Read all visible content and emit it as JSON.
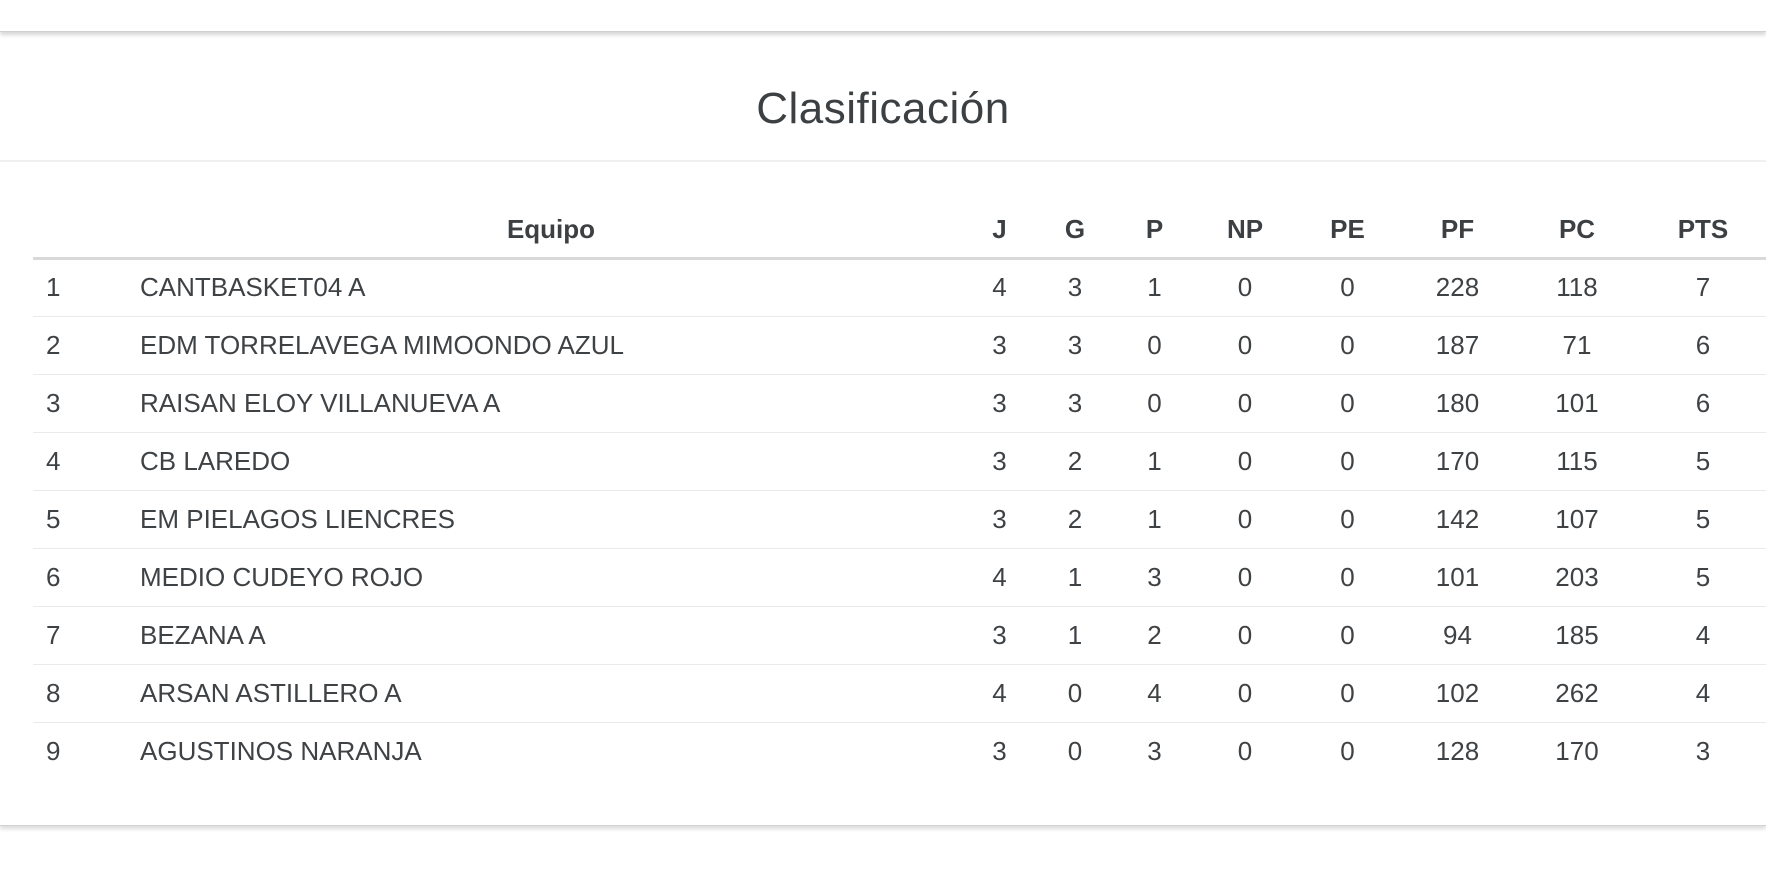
{
  "page": {
    "title": "Clasificación"
  },
  "colors": {
    "text": "#3f4245",
    "title_text": "#3c4043",
    "row_border": "#e9eaea",
    "header_border": "#d9d9d9",
    "title_divider": "#f0f0f0",
    "edge_border": "#d0d0d0",
    "background": "#ffffff"
  },
  "table": {
    "columns": [
      {
        "key": "pos",
        "label": ""
      },
      {
        "key": "team",
        "label": "Equipo"
      },
      {
        "key": "j",
        "label": "J"
      },
      {
        "key": "g",
        "label": "G"
      },
      {
        "key": "p",
        "label": "P"
      },
      {
        "key": "np",
        "label": "NP"
      },
      {
        "key": "pe",
        "label": "PE"
      },
      {
        "key": "pf",
        "label": "PF"
      },
      {
        "key": "pc",
        "label": "PC"
      },
      {
        "key": "pts",
        "label": "PTS"
      }
    ],
    "rows": [
      {
        "pos": "1",
        "team": "CANTBASKET04 A",
        "j": "4",
        "g": "3",
        "p": "1",
        "np": "0",
        "pe": "0",
        "pf": "228",
        "pc": "118",
        "pts": "7"
      },
      {
        "pos": "2",
        "team": "EDM TORRELAVEGA MIMOONDO AZUL",
        "j": "3",
        "g": "3",
        "p": "0",
        "np": "0",
        "pe": "0",
        "pf": "187",
        "pc": "71",
        "pts": "6"
      },
      {
        "pos": "3",
        "team": "RAISAN ELOY VILLANUEVA A",
        "j": "3",
        "g": "3",
        "p": "0",
        "np": "0",
        "pe": "0",
        "pf": "180",
        "pc": "101",
        "pts": "6"
      },
      {
        "pos": "4",
        "team": "CB LAREDO",
        "j": "3",
        "g": "2",
        "p": "1",
        "np": "0",
        "pe": "0",
        "pf": "170",
        "pc": "115",
        "pts": "5"
      },
      {
        "pos": "5",
        "team": "EM PIELAGOS LIENCRES",
        "j": "3",
        "g": "2",
        "p": "1",
        "np": "0",
        "pe": "0",
        "pf": "142",
        "pc": "107",
        "pts": "5"
      },
      {
        "pos": "6",
        "team": "MEDIO CUDEYO ROJO",
        "j": "4",
        "g": "1",
        "p": "3",
        "np": "0",
        "pe": "0",
        "pf": "101",
        "pc": "203",
        "pts": "5"
      },
      {
        "pos": "7",
        "team": "BEZANA A",
        "j": "3",
        "g": "1",
        "p": "2",
        "np": "0",
        "pe": "0",
        "pf": "94",
        "pc": "185",
        "pts": "4"
      },
      {
        "pos": "8",
        "team": "ARSAN ASTILLERO A",
        "j": "4",
        "g": "0",
        "p": "4",
        "np": "0",
        "pe": "0",
        "pf": "102",
        "pc": "262",
        "pts": "4"
      },
      {
        "pos": "9",
        "team": "AGUSTINOS NARANJA",
        "j": "3",
        "g": "0",
        "p": "3",
        "np": "0",
        "pe": "0",
        "pf": "128",
        "pc": "170",
        "pts": "3"
      }
    ]
  }
}
